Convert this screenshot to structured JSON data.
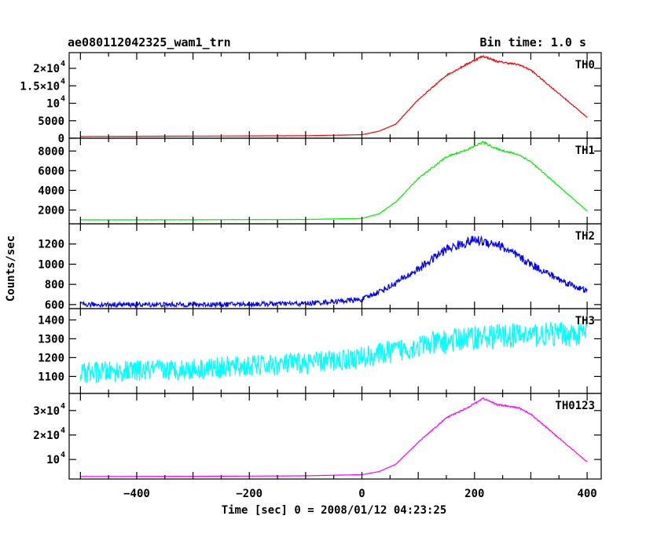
{
  "chart_data": {
    "type": "line",
    "title_left": "ae080112042325_wam1_trn",
    "title_right": "Bin time: 1.0 s",
    "xlabel": "Time [sec] 0 = 2008/01/12 04:23:25",
    "ylabel": "Counts/sec",
    "xlim": [
      -520,
      425
    ],
    "x_ticks": [
      {
        "v": -400,
        "label": "−400"
      },
      {
        "v": -200,
        "label": "−200"
      },
      {
        "v": 0,
        "label": "0"
      },
      {
        "v": 200,
        "label": "200"
      },
      {
        "v": 400,
        "label": "400"
      }
    ],
    "grid": false,
    "bin_time_s": 1.0,
    "panels": [
      {
        "name": "TH0",
        "color": "#ff0000",
        "ylim": [
          0,
          24500
        ],
        "noise": 0.012,
        "y_ticks": [
          {
            "v": 0,
            "label": "0"
          },
          {
            "v": 5000,
            "label": "5000"
          },
          {
            "v": 10000,
            "label": "10",
            "exp": "4"
          },
          {
            "v": 15000,
            "label": "1.5×10",
            "exp": "4"
          },
          {
            "v": 20000,
            "label": "2×10",
            "exp": "4"
          }
        ],
        "x": [
          -500,
          -300,
          -100,
          0,
          30,
          60,
          100,
          150,
          190,
          215,
          240,
          280,
          300,
          400
        ],
        "y": [
          500,
          600,
          700,
          1000,
          2000,
          4000,
          11000,
          18000,
          21500,
          23500,
          22000,
          21000,
          19500,
          6000
        ]
      },
      {
        "name": "TH1",
        "color": "#00ee00",
        "ylim": [
          600,
          9300
        ],
        "noise": 0.012,
        "y_ticks": [
          {
            "v": 2000,
            "label": "2000"
          },
          {
            "v": 4000,
            "label": "4000"
          },
          {
            "v": 6000,
            "label": "6000"
          },
          {
            "v": 8000,
            "label": "8000"
          }
        ],
        "x": [
          -500,
          -300,
          -100,
          0,
          30,
          60,
          100,
          150,
          190,
          215,
          240,
          280,
          300,
          400
        ],
        "y": [
          1000,
          1010,
          1040,
          1150,
          1600,
          2800,
          5200,
          7400,
          8200,
          8900,
          8200,
          7600,
          6900,
          1900
        ]
      },
      {
        "name": "TH2",
        "color": "#0000ff",
        "ylim": [
          560,
          1400
        ],
        "noise": 0.04,
        "y_ticks": [
          {
            "v": 600,
            "label": "600"
          },
          {
            "v": 800,
            "label": "800"
          },
          {
            "v": 1000,
            "label": "1000"
          },
          {
            "v": 1200,
            "label": "1200"
          }
        ],
        "x": [
          -500,
          -300,
          -100,
          0,
          50,
          100,
          150,
          200,
          240,
          300,
          350,
          400
        ],
        "y": [
          600,
          600,
          610,
          650,
          780,
          950,
          1150,
          1240,
          1200,
          1000,
          850,
          730
        ]
      },
      {
        "name": "TH3",
        "color": "#00ffff",
        "ylim": [
          1010,
          1460
        ],
        "noise": 0.05,
        "y_ticks": [
          {
            "v": 1100,
            "label": "1100"
          },
          {
            "v": 1200,
            "label": "1200"
          },
          {
            "v": 1300,
            "label": "1300"
          },
          {
            "v": 1400,
            "label": "1400"
          }
        ],
        "x": [
          -500,
          -300,
          -100,
          0,
          100,
          200,
          300,
          400
        ],
        "y": [
          1120,
          1140,
          1170,
          1200,
          1260,
          1310,
          1320,
          1330
        ]
      },
      {
        "name": "TH0123",
        "color": "#ff00ff",
        "ylim": [
          2000,
          37000
        ],
        "noise": 0.01,
        "y_ticks": [
          {
            "v": 10000,
            "label": "10",
            "exp": "4"
          },
          {
            "v": 20000,
            "label": "2×10",
            "exp": "4"
          },
          {
            "v": 30000,
            "label": "3×10",
            "exp": "4"
          }
        ],
        "x": [
          -500,
          -300,
          -100,
          0,
          30,
          60,
          100,
          150,
          190,
          215,
          240,
          280,
          300,
          400
        ],
        "y": [
          3000,
          3100,
          3300,
          3800,
          5000,
          8000,
          17000,
          27000,
          31500,
          35000,
          32500,
          31000,
          28500,
          9000
        ]
      }
    ]
  }
}
